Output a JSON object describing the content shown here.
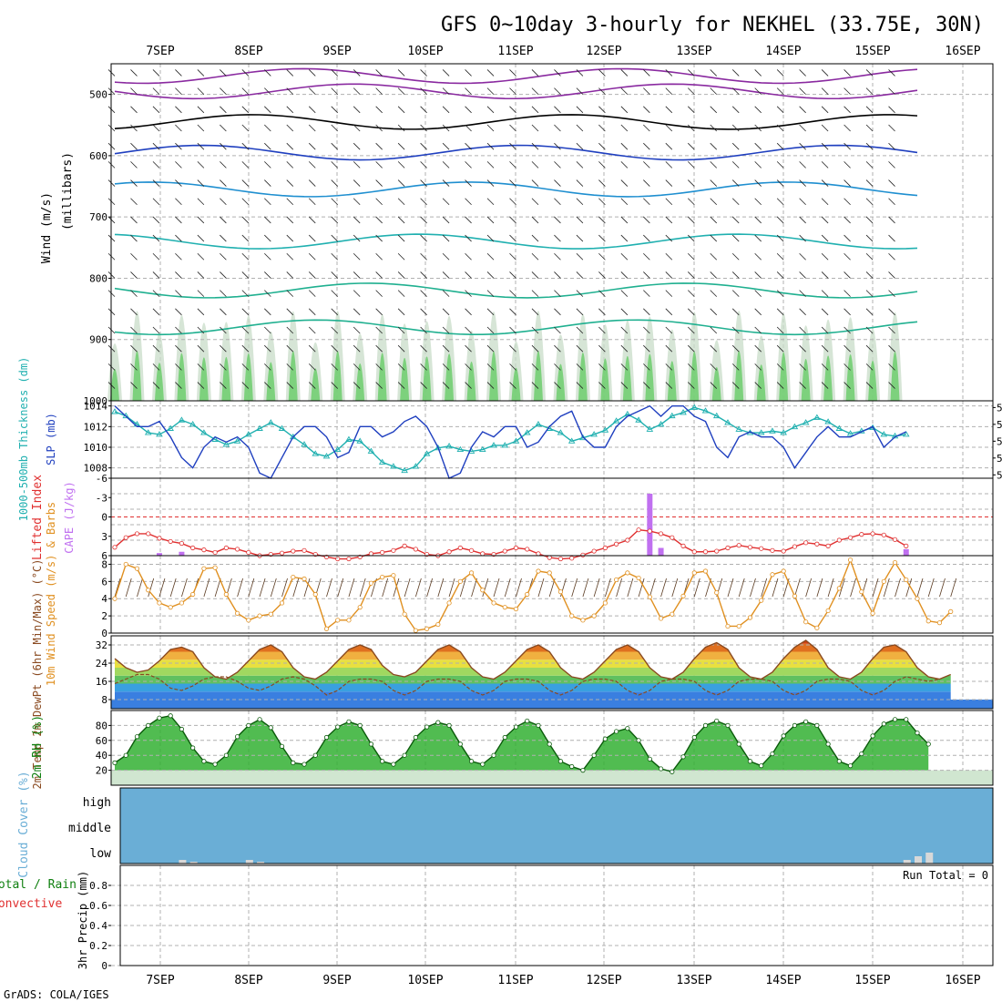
{
  "title": "GFS 0~10day 3-hourly for NEKHEL (33.75E, 30N)",
  "footer": "GrADS: COLA/IGES",
  "date_labels": [
    "7SEP",
    "8SEP",
    "9SEP",
    "10SEP",
    "11SEP",
    "12SEP",
    "13SEP",
    "14SEP",
    "15SEP",
    "16SEP"
  ],
  "colors": {
    "slp": "#1f3fbf",
    "thickness": "#20b0b0",
    "lifted": "#e03030",
    "cape": "#c070f0",
    "wind10": "#e09020",
    "temp": "#8a4a20",
    "dew": "#8a4a20",
    "rh": "#108010",
    "cloud": "#6aaed6",
    "frame": "#000000",
    "grid": "#b0b0b0"
  },
  "chart_data": [
    {
      "type": "heatmap",
      "name": "upper-air",
      "ylabel": {
        "wind": "Wind (m/s)",
        "temp": "Temperature (°C)",
        "rh": "RH (%)",
        "units": "(millibars)"
      },
      "y_ticks": [
        500,
        600,
        700,
        800,
        900,
        1000
      ],
      "y_tick_labels": [
        "500",
        "600",
        "700",
        "800",
        "900",
        "1000"
      ],
      "ylim": [
        450,
        1000
      ],
      "isotherm_labels": [
        "-5",
        "FR",
        "5",
        "10",
        "15",
        "20",
        "-5",
        "FR",
        "5",
        "10",
        "20",
        "FR",
        "-5",
        "5",
        "10",
        "30",
        "0",
        "1",
        "20"
      ]
    },
    {
      "type": "line",
      "name": "slp-thickness",
      "ylabel_left": "1000-500mb Thickness (dm)",
      "ylabel_right": "SLP (mb)",
      "left_ticks": [
        "574",
        "576",
        "578",
        "580",
        "582"
      ],
      "right_ticks": [
        "1008",
        "1010",
        "1012",
        "1014"
      ],
      "series": [
        {
          "name": "SLP (mb)",
          "values": [
            1014,
            1013,
            1012,
            1012,
            1012.5,
            1011,
            1009,
            1008,
            1010,
            1011,
            1010.5,
            1011,
            1010,
            1007.5,
            1007,
            1009,
            1011,
            1012,
            1012,
            1011,
            1009,
            1009.5,
            1012,
            1012,
            1011,
            1011.5,
            1012.5,
            1013,
            1012,
            1010,
            1007,
            1007.5,
            1010,
            1011.5,
            1011,
            1012,
            1012,
            1010,
            1010.5,
            1012,
            1013,
            1013.5,
            1011,
            1010,
            1010,
            1012,
            1013,
            1013.5,
            1014,
            1013,
            1014,
            1014,
            1013,
            1012.5,
            1010,
            1009,
            1011,
            1011.5,
            1011,
            1011,
            1010,
            1008,
            1009.5,
            1011,
            1012,
            1011,
            1011,
            1011.5,
            1012,
            1010,
            1011,
            1011.5
          ],
          "ylim": [
            1007,
            1014.5
          ]
        },
        {
          "name": "1000-500mb Thickness (dm)",
          "values": [
            581.5,
            581,
            580,
            579,
            578.8,
            579.5,
            580.5,
            580,
            579,
            578.2,
            577.6,
            578,
            578.8,
            579.5,
            580.2,
            579.5,
            578.5,
            577.6,
            576.5,
            576.2,
            577,
            578.2,
            578,
            576.8,
            575.5,
            575,
            574.5,
            575,
            576.5,
            577.2,
            577.4,
            577,
            576.8,
            577,
            577.5,
            577.5,
            578,
            579,
            580,
            579.5,
            579,
            578,
            578.4,
            578.8,
            579.3,
            580.4,
            581.2,
            580.5,
            579.4,
            580,
            581,
            581.4,
            582,
            581.6,
            581,
            580.2,
            579.4,
            579,
            579,
            579.2,
            579,
            579.7,
            580.2,
            580.8,
            580.3,
            579.5,
            578.9,
            579.2,
            579.6,
            578.8,
            578.6,
            578.8
          ],
          "ylim": [
            573.6,
            582.8
          ]
        }
      ]
    },
    {
      "type": "bar",
      "name": "lifted-cape",
      "ylabel_left": "Lifted Index",
      "ylabel_right": "CAPE (J/kg)",
      "left_ticks": [
        "-6",
        "-3",
        "0",
        "3",
        "6"
      ],
      "right_ticks": [
        "12",
        "24",
        "36",
        "48"
      ],
      "series": [
        {
          "name": "Lifted Index",
          "values": [
            4.7,
            3.2,
            2.6,
            2.6,
            3.3,
            3.8,
            4.1,
            4.8,
            5.1,
            5.5,
            4.8,
            5.0,
            5.5,
            6.0,
            5.8,
            5.6,
            5.3,
            5.2,
            5.8,
            6.2,
            6.5,
            6.5,
            6.2,
            5.7,
            5.5,
            5.2,
            4.5,
            5.0,
            5.8,
            6.0,
            5.4,
            4.8,
            5.2,
            5.7,
            5.8,
            5.3,
            4.8,
            5.0,
            5.7,
            6.3,
            6.5,
            6.4,
            5.9,
            5.3,
            4.8,
            4.2,
            3.6,
            2.0,
            2.2,
            2.6,
            3.2,
            4.5,
            5.4,
            5.4,
            5.3,
            4.8,
            4.4,
            4.7,
            4.9,
            5.2,
            5.3,
            4.6,
            4.0,
            4.2,
            4.5,
            3.6,
            3.2,
            2.7,
            2.6,
            2.8,
            3.5,
            4.5
          ],
          "ylim": [
            6,
            -6
          ]
        },
        {
          "name": "CAPE (J/kg)",
          "values": [
            0,
            0,
            0,
            0,
            2,
            0,
            3,
            0,
            0,
            0,
            0,
            0,
            0,
            0,
            0,
            0,
            0,
            0,
            0,
            0,
            0,
            0,
            0,
            0,
            0,
            0,
            0,
            0,
            0,
            0,
            0,
            0,
            0,
            0,
            0,
            0,
            0,
            0,
            0,
            0,
            0,
            0,
            0,
            0,
            0,
            0,
            0,
            0,
            48,
            6,
            0,
            0,
            0,
            0,
            0,
            0,
            0,
            0,
            0,
            0,
            0,
            0,
            0,
            0,
            0,
            0,
            0,
            0,
            0,
            0,
            0,
            5
          ],
          "ylim": [
            0,
            60
          ]
        }
      ]
    },
    {
      "type": "line",
      "name": "wind10",
      "ylabel": "10m Wind Speed (m/s) & Barbs",
      "y_ticks": [
        "0",
        "2",
        "4",
        "6",
        "8"
      ],
      "series": [
        {
          "name": "10m Wind Speed",
          "values": [
            4,
            8,
            7.5,
            5,
            3.5,
            3,
            3.5,
            4.5,
            7.5,
            7.6,
            4.5,
            2.3,
            1.5,
            2,
            2.2,
            3.5,
            6.5,
            6.3,
            4.5,
            0.5,
            1.5,
            1.5,
            3,
            5.8,
            6.5,
            6.7,
            2.2,
            0.3,
            0.5,
            1,
            3.5,
            6.0,
            7.0,
            5.0,
            3.5,
            3.0,
            2.8,
            4.5,
            7.2,
            7.0,
            4.8,
            2.0,
            1.5,
            2.0,
            3.5,
            6.2,
            7.0,
            6.4,
            4.2,
            1.7,
            2.2,
            4.3,
            7.0,
            7.2,
            4.7,
            0.8,
            0.8,
            1.8,
            3.8,
            6.8,
            7.2,
            4.3,
            1.3,
            0.6,
            2.6,
            5.2,
            8.5,
            4.8,
            2.3,
            6.0,
            8.2,
            6.2,
            4.0,
            1.4,
            1.2,
            2.5
          ],
          "ylim": [
            0,
            9
          ]
        }
      ]
    },
    {
      "type": "area",
      "name": "temp-dew",
      "ylabel": "2m Temp 2m DewPt (6hr Min/Max) (°C)",
      "y_ticks": [
        "8",
        "16",
        "24",
        "32"
      ],
      "series": [
        {
          "name": "2m Temp",
          "values": [
            26,
            22,
            20,
            21,
            25,
            30,
            31,
            29,
            22,
            18,
            17,
            20,
            25,
            30,
            32,
            29,
            22,
            18,
            17,
            20,
            25,
            30,
            32,
            30,
            23,
            19,
            18,
            20,
            25,
            30,
            32,
            29,
            22,
            18,
            17,
            20,
            25,
            30,
            32,
            29,
            22,
            18,
            17,
            20,
            25,
            30,
            32,
            29,
            22,
            18,
            17,
            20,
            26,
            31,
            33,
            30,
            22,
            18,
            17,
            20,
            26,
            31,
            34,
            30,
            22,
            18,
            17,
            20,
            26,
            31,
            32,
            29,
            22,
            18,
            17,
            19
          ],
          "ylim": [
            4,
            36
          ]
        },
        {
          "name": "2m DewPt",
          "values": [
            15,
            17,
            19,
            19,
            17,
            13,
            12,
            14,
            17,
            18,
            18,
            16,
            13,
            12,
            14,
            17,
            18,
            17,
            14,
            10,
            12,
            16,
            17,
            17,
            16,
            12,
            10,
            12,
            16,
            17,
            17,
            16,
            12,
            10,
            12,
            16,
            17,
            17,
            16,
            12,
            10,
            12,
            16,
            17,
            17,
            16,
            12,
            10,
            12,
            16,
            17,
            17,
            16,
            12,
            10,
            12,
            16,
            17,
            17,
            16,
            12,
            10,
            12,
            16,
            17,
            17,
            16,
            12,
            10,
            12,
            16,
            18,
            17,
            16,
            17
          ],
          "ylim": [
            4,
            36
          ]
        }
      ]
    },
    {
      "type": "area",
      "name": "rh2m",
      "ylabel": "2m RH (%)",
      "y_ticks": [
        "20",
        "40",
        "60",
        "80"
      ],
      "series": [
        {
          "name": "2m RH",
          "values": [
            30,
            40,
            65,
            80,
            90,
            93,
            75,
            50,
            32,
            28,
            40,
            65,
            80,
            88,
            77,
            52,
            30,
            28,
            40,
            64,
            78,
            85,
            80,
            55,
            32,
            28,
            40,
            64,
            78,
            84,
            80,
            55,
            32,
            28,
            40,
            64,
            78,
            86,
            80,
            55,
            32,
            25,
            20,
            40,
            62,
            72,
            76,
            60,
            35,
            22,
            18,
            38,
            64,
            80,
            86,
            80,
            55,
            32,
            26,
            42,
            66,
            80,
            85,
            80,
            55,
            32,
            26,
            42,
            66,
            82,
            88,
            88,
            70,
            55
          ],
          "ylim": [
            0,
            100
          ]
        }
      ]
    },
    {
      "type": "area",
      "name": "cloud-cover",
      "ylabel": "Cloud Cover (%)",
      "levels": [
        "high",
        "middle",
        "low"
      ],
      "series": [
        {
          "name": "low",
          "values": [
            0,
            0,
            0,
            0,
            0,
            0,
            4,
            2,
            0,
            0,
            0,
            0,
            4,
            2,
            0,
            0,
            0,
            0,
            0,
            0,
            0,
            0,
            0,
            0,
            0,
            0,
            0,
            0,
            0,
            0,
            0,
            0,
            0,
            0,
            0,
            0,
            0,
            0,
            0,
            0,
            0,
            0,
            0,
            0,
            0,
            0,
            0,
            0,
            0,
            0,
            0,
            0,
            0,
            0,
            0,
            0,
            0,
            0,
            0,
            0,
            0,
            0,
            0,
            0,
            0,
            0,
            0,
            0,
            0,
            0,
            0,
            4,
            8,
            12
          ]
        }
      ]
    },
    {
      "type": "bar",
      "name": "precip",
      "ylabel": "3hr Precip (mm)",
      "legend_left": [
        "Total / Rain",
        "Convective"
      ],
      "run_total": "Run Total = 0",
      "y_ticks": [
        "0",
        "0.2",
        "0.4",
        "0.6",
        "0.8"
      ],
      "ylim": [
        0,
        1
      ],
      "series": [
        {
          "name": "3hr Precip",
          "values": [
            0,
            0,
            0,
            0,
            0,
            0,
            0,
            0,
            0,
            0,
            0,
            0,
            0,
            0,
            0,
            0,
            0,
            0,
            0,
            0,
            0,
            0,
            0,
            0,
            0,
            0,
            0,
            0,
            0,
            0,
            0,
            0,
            0,
            0,
            0,
            0,
            0,
            0,
            0,
            0,
            0,
            0,
            0,
            0,
            0,
            0,
            0,
            0,
            0,
            0,
            0,
            0,
            0,
            0,
            0,
            0,
            0,
            0,
            0,
            0,
            0,
            0,
            0,
            0,
            0,
            0,
            0,
            0,
            0,
            0,
            0,
            0,
            0,
            0
          ]
        }
      ]
    }
  ]
}
